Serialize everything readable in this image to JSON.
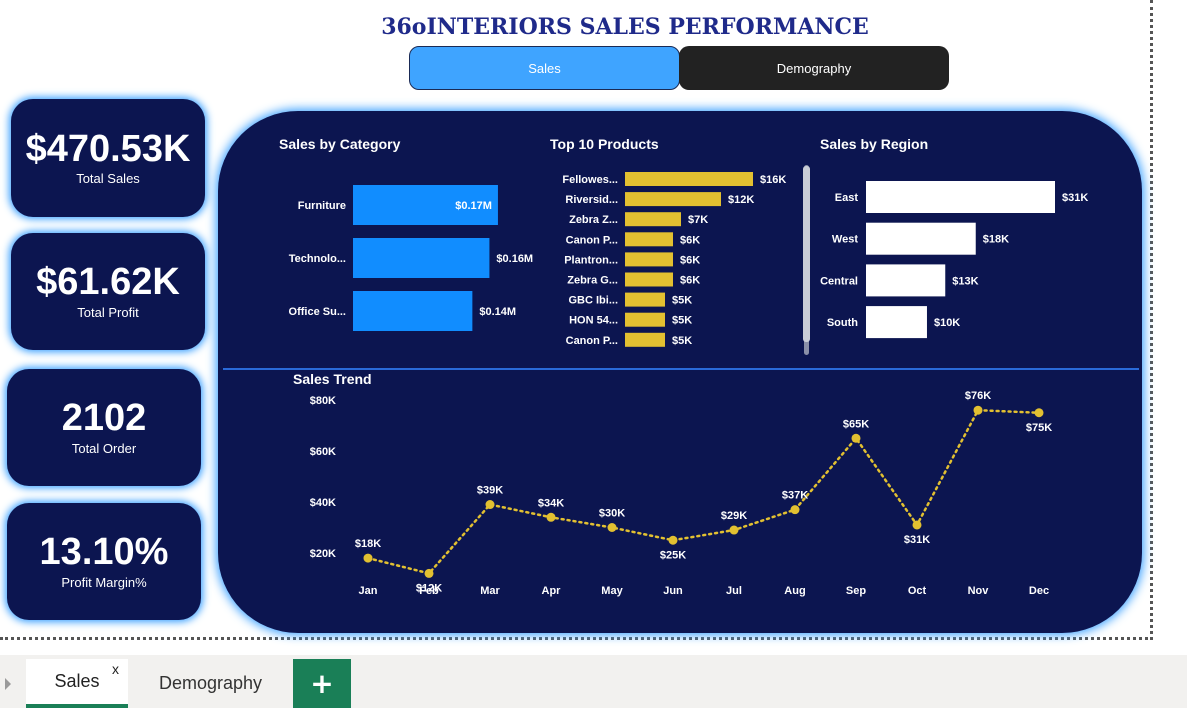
{
  "report_title": "36oINTERIORS SALES PERFORMANCE",
  "nav": {
    "sales_label": "Sales",
    "demography_label": "Demography"
  },
  "kpis": {
    "total_sales": {
      "value": "$470.53K",
      "label": "Total Sales"
    },
    "total_profit": {
      "value": "$61.62K",
      "label": "Total Profit"
    },
    "total_order": {
      "value": "2102",
      "label": "Total Order"
    },
    "profit_margin": {
      "value": "13.10%",
      "label": "Profit Margin%"
    }
  },
  "colors": {
    "panel": "#0c1550",
    "blue_bar": "#118dff",
    "gold": "#e2c031",
    "accent_green": "#1a7f57",
    "glow": "#3aa0ff"
  },
  "tabs": {
    "active": "Sales",
    "close": "x",
    "other": "Demography",
    "add": "+"
  },
  "chart_data": [
    {
      "type": "bar",
      "orientation": "horizontal",
      "title": "Sales by Category",
      "categories": [
        "Furniture",
        "Technolo...",
        "Office Su..."
      ],
      "values": [
        0.17,
        0.16,
        0.14
      ],
      "data_labels": [
        "$0.17M",
        "$0.16M",
        "$0.14M"
      ],
      "unit": "M",
      "color": "#118dff",
      "xlim": [
        0,
        0.19
      ]
    },
    {
      "type": "bar",
      "orientation": "horizontal",
      "title": "Top 10 Products",
      "categories": [
        "Fellowes...",
        "Riversid...",
        "Zebra Z...",
        "Canon P...",
        "Plantron...",
        "Zebra G...",
        "GBC Ibi...",
        "HON 54...",
        "Canon P..."
      ],
      "values": [
        16,
        12,
        7,
        6,
        6,
        6,
        5,
        5,
        5
      ],
      "data_labels": [
        "$16K",
        "$12K",
        "$7K",
        "$6K",
        "$6K",
        "$6K",
        "$5K",
        "$5K",
        "$5K"
      ],
      "unit": "K",
      "color": "#e2c031",
      "xlim": [
        0,
        16
      ]
    },
    {
      "type": "bar",
      "orientation": "horizontal",
      "title": "Sales by Region",
      "categories": [
        "East",
        "West",
        "Central",
        "South"
      ],
      "values": [
        31,
        18,
        13,
        10
      ],
      "data_labels": [
        "$31K",
        "$18K",
        "$13K",
        "$10K"
      ],
      "unit": "K",
      "color": "#ffffff",
      "xlim": [
        0,
        31
      ]
    },
    {
      "type": "line",
      "title": "Sales Trend",
      "x": [
        "Jan",
        "Feb",
        "Mar",
        "Apr",
        "May",
        "Jun",
        "Jul",
        "Aug",
        "Sep",
        "Oct",
        "Nov",
        "Dec"
      ],
      "values": [
        18,
        12,
        39,
        34,
        30,
        25,
        29,
        37,
        65,
        31,
        76,
        75
      ],
      "data_labels": [
        "$18K",
        "$12K",
        "$39K",
        "$34K",
        "$30K",
        "$25K",
        "$29K",
        "$37K",
        "$65K",
        "$31K",
        "$76K",
        "$75K"
      ],
      "yticks": [
        "$20K",
        "$40K",
        "$60K",
        "$80K"
      ],
      "ylim": [
        10,
        80
      ],
      "color": "#e2c031",
      "line_style": "dotted"
    }
  ]
}
